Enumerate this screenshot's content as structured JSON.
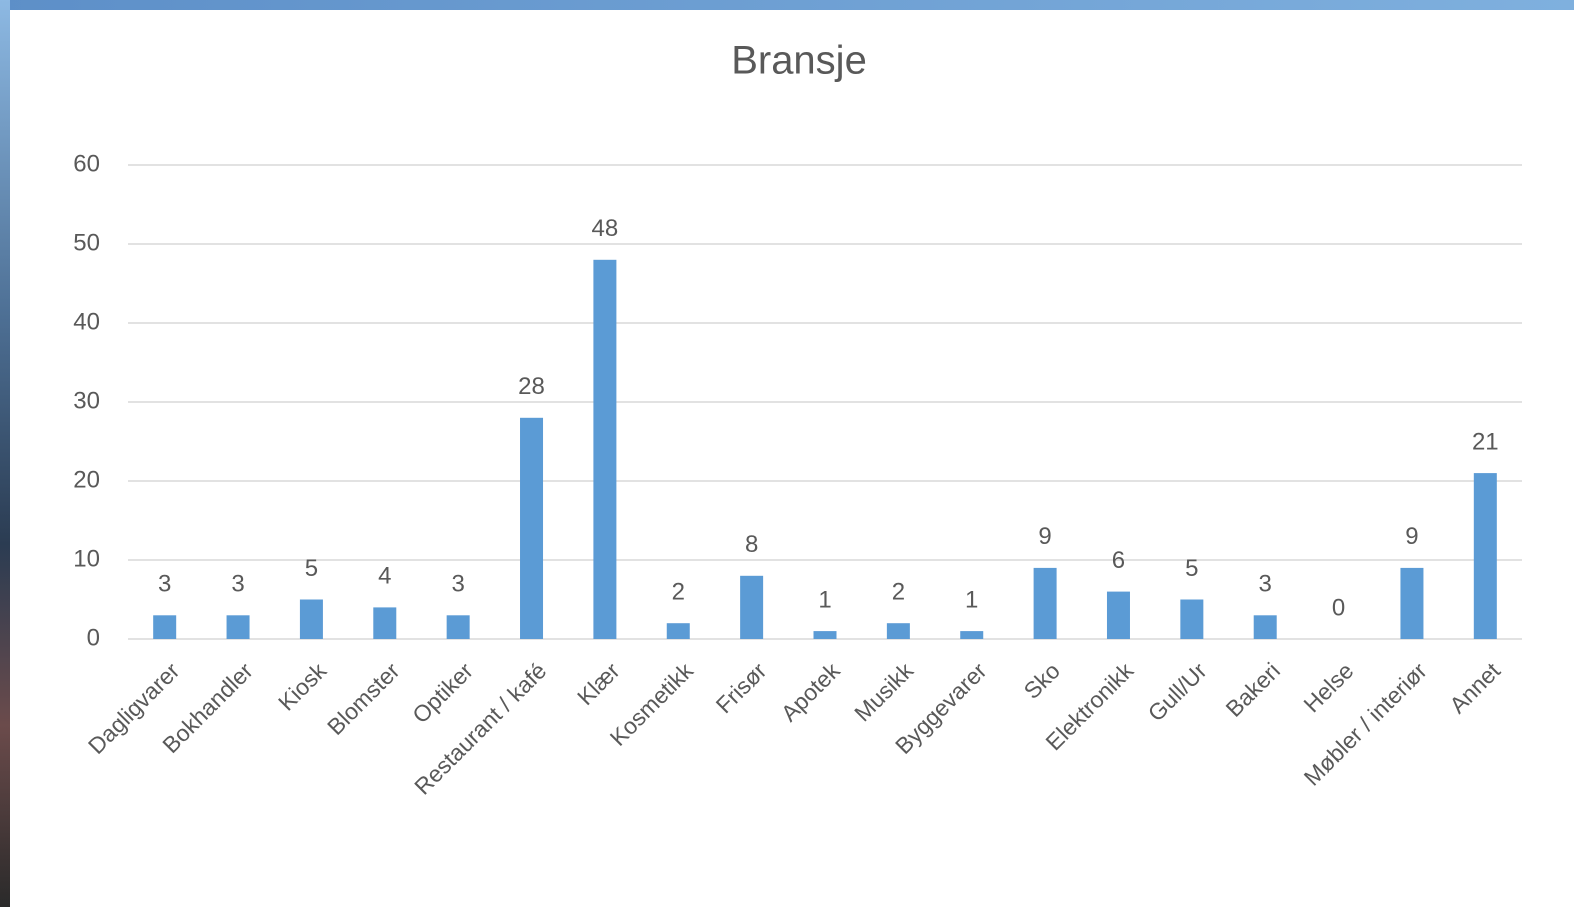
{
  "chart_data": {
    "type": "bar",
    "title": "Bransje",
    "categories": [
      "Dagligvarer",
      "Bokhandler",
      "Kiosk",
      "Blomster",
      "Optiker",
      "Restaurant / kafé",
      "Klær",
      "Kosmetikk",
      "Frisør",
      "Apotek",
      "Musikk",
      "Byggevarer",
      "Sko",
      "Elektronikk",
      "Gull/Ur",
      "Bakeri",
      "Helse",
      "Møbler / interiør",
      "Annet"
    ],
    "values": [
      3,
      3,
      5,
      4,
      3,
      28,
      48,
      2,
      8,
      1,
      2,
      1,
      9,
      6,
      5,
      3,
      0,
      9,
      21
    ],
    "color": "#5b9bd5",
    "ylim": [
      0,
      60
    ],
    "yticks": [
      0,
      10,
      20,
      30,
      40,
      50,
      60
    ],
    "grid": true,
    "data_labels": true
  }
}
